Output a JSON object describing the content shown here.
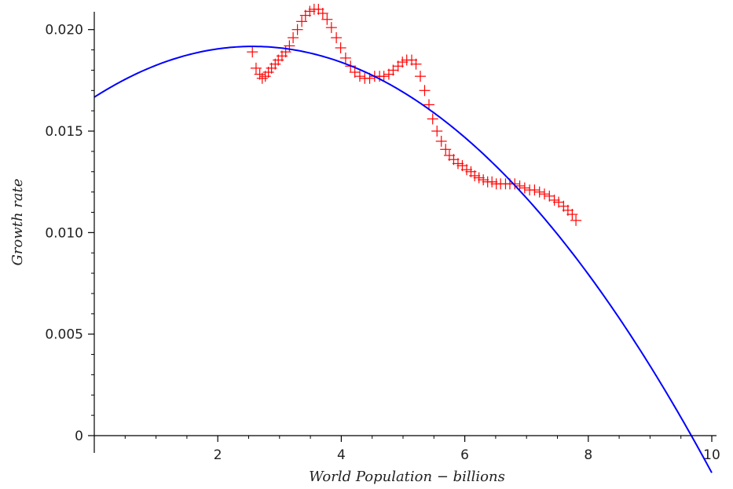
{
  "chart_data": {
    "type": "scatter",
    "xlabel": "World Population − billions",
    "ylabel": "Growth rate",
    "xlim": [
      0,
      10
    ],
    "ylim": [
      0,
      0.0208
    ],
    "x_ticks": [
      {
        "value": 2,
        "label": "2"
      },
      {
        "value": 4,
        "label": "4"
      },
      {
        "value": 6,
        "label": "6"
      },
      {
        "value": 8,
        "label": "8"
      },
      {
        "value": 10,
        "label": "10"
      }
    ],
    "y_ticks": [
      {
        "value": 0,
        "label": "0"
      },
      {
        "value": 0.005,
        "label": "0.005"
      },
      {
        "value": 0.01,
        "label": "0.010"
      },
      {
        "value": 0.015,
        "label": "0.015"
      },
      {
        "value": 0.02,
        "label": "0.020"
      }
    ],
    "grid": false,
    "series": [
      {
        "kind": "scatter",
        "marker": "plus",
        "color": "#ff0000",
        "x": [
          2.56,
          2.62,
          2.68,
          2.72,
          2.77,
          2.82,
          2.87,
          2.93,
          2.98,
          3.04,
          3.1,
          3.16,
          3.22,
          3.29,
          3.36,
          3.42,
          3.49,
          3.56,
          3.63,
          3.7,
          3.77,
          3.84,
          3.92,
          3.99,
          4.07,
          4.15,
          4.22,
          4.3,
          4.38,
          4.46,
          4.54,
          4.62,
          4.69,
          4.77,
          4.84,
          4.92,
          4.99,
          5.06,
          5.14,
          5.21,
          5.28,
          5.35,
          5.42,
          5.48,
          5.55,
          5.62,
          5.69,
          5.75,
          5.82,
          5.89,
          5.96,
          6.03,
          6.1,
          6.16,
          6.23,
          6.3,
          6.37,
          6.44,
          6.51,
          6.58,
          6.66,
          6.73,
          6.81,
          6.89,
          6.97,
          7.05,
          7.13,
          7.21,
          7.29,
          7.37,
          7.45,
          7.52,
          7.6,
          7.67,
          7.74,
          7.8
        ],
        "y": [
          0.0189,
          0.0181,
          0.0178,
          0.0176,
          0.0177,
          0.0179,
          0.0181,
          0.0183,
          0.0185,
          0.0187,
          0.0189,
          0.0192,
          0.0196,
          0.02,
          0.0204,
          0.0207,
          0.0209,
          0.021,
          0.021,
          0.0208,
          0.0205,
          0.0201,
          0.0196,
          0.0191,
          0.0186,
          0.0182,
          0.0179,
          0.0177,
          0.0176,
          0.0176,
          0.0177,
          0.0177,
          0.0177,
          0.0178,
          0.018,
          0.0182,
          0.0184,
          0.0185,
          0.0185,
          0.0183,
          0.0177,
          0.017,
          0.0163,
          0.0156,
          0.015,
          0.0145,
          0.0141,
          0.0138,
          0.0136,
          0.0134,
          0.0133,
          0.0131,
          0.013,
          0.0128,
          0.0127,
          0.0126,
          0.0125,
          0.0125,
          0.0124,
          0.0124,
          0.0124,
          0.0124,
          0.0124,
          0.0123,
          0.0122,
          0.0121,
          0.0121,
          0.012,
          0.0119,
          0.0118,
          0.0116,
          0.0115,
          0.0113,
          0.0111,
          0.0109,
          0.0106
        ]
      },
      {
        "kind": "line",
        "color": "#0000ff",
        "function": "quadratic",
        "coefficients": {
          "a": -0.00038,
          "b": 0.00195,
          "c": 0.01667
        },
        "x_range": [
          0,
          10
        ]
      }
    ]
  }
}
